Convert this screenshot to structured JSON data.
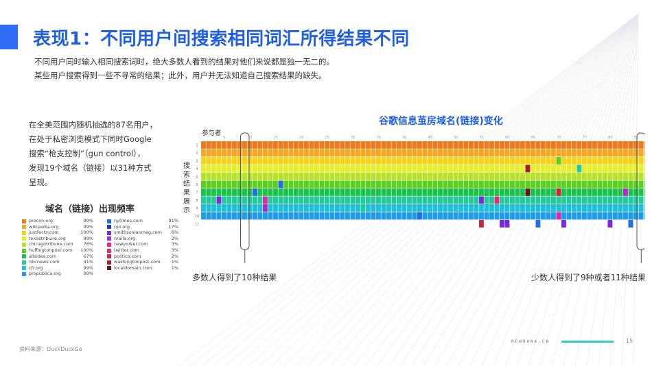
{
  "header": {
    "title": "表现1：不同用户间搜索相同词汇所得结果不同",
    "subtitle_lines": [
      "不同用户同时输入相同搜索词时，绝大多数人看到的结果对他们来说都是独一无二的。",
      "某些用户搜索得到一些不寻常的结果；此外，用户并无法知道自己搜索结果的缺失。"
    ]
  },
  "intro": {
    "lines": [
      "在全美范围内随机抽选的87名用户，",
      "在处于私密浏览模式下同时Google",
      "搜索“枪支控制”（gun control），",
      "发现19个域名（链接）以31种方式",
      "呈现。"
    ]
  },
  "legend": {
    "title": "域名（链接）出现频率",
    "columns": [
      [
        {
          "name": "procon.org",
          "pct": "99%",
          "color": "#f07a1a"
        },
        {
          "name": "wikipedia.org",
          "pct": "99%",
          "color": "#f5a623"
        },
        {
          "name": "justfects.com",
          "pct": "100%",
          "color": "#f5d31b"
        },
        {
          "name": "texastribune.org",
          "pct": "99%",
          "color": "#e6ef2a"
        },
        {
          "name": "chicagotribune.com",
          "pct": "76%",
          "color": "#b6e22a"
        },
        {
          "name": "huffingtonpost.com",
          "pct": "100%",
          "color": "#5fcf1f"
        },
        {
          "name": "allsides.com",
          "pct": "67%",
          "color": "#1cc34a"
        },
        {
          "name": "nbcnews.com",
          "pct": "41%",
          "color": "#21c99b"
        },
        {
          "name": "cfr.org",
          "pct": "99%",
          "color": "#21bfd8"
        },
        {
          "name": "propublica.org",
          "pct": "99%",
          "color": "#1f9be8"
        }
      ],
      [
        {
          "name": "nytimes.com",
          "pct": "91%",
          "color": "#1f6fe0"
        },
        {
          "name": "npr.org",
          "pct": "17%",
          "color": "#1b3fbe"
        },
        {
          "name": "smithsonianmag.com",
          "pct": "6%",
          "color": "#7b2ad8"
        },
        {
          "name": "nraila.org",
          "pct": "2%",
          "color": "#b02ad0"
        },
        {
          "name": "newyorker.com",
          "pct": "3%",
          "color": "#d62aa8"
        },
        {
          "name": "twitter.com",
          "pct": "3%",
          "color": "#e02a72"
        },
        {
          "name": "politico.com",
          "pct": "2%",
          "color": "#c8263c"
        },
        {
          "name": "washingtonpost.com",
          "pct": "1%",
          "color": "#a51f2a"
        },
        {
          "name": "localdomain.com",
          "pct": "1%",
          "color": "#6b1518"
        }
      ]
    ]
  },
  "chart": {
    "title": "谷歌信息茧房域名(链接)变化",
    "participants_label": "参与者",
    "y_label": "搜索结果展示",
    "x_ticks": [
      "5",
      "10",
      "15",
      "20",
      "25",
      "30",
      "35",
      "40",
      "45",
      "50",
      "55",
      "60",
      "65",
      "70",
      "75",
      "80",
      "85"
    ],
    "y_ticks": [
      "1",
      "2",
      "3",
      "4",
      "5",
      "6",
      "7",
      "8",
      "9",
      "10",
      "11"
    ],
    "callout_left": "多数人得到了10种结果",
    "callout_right": "少数人得到了9种或者11种结果"
  },
  "chart_data": {
    "type": "heatmap",
    "x": "participant 1-87",
    "y": "result position 1-11",
    "num_participants": 87,
    "num_positions": 11,
    "row_base_colors": [
      "#f07a1a",
      "#f5a623",
      "#f5d31b",
      "#e6ef2a",
      "#b6e22a",
      "#5fcf1f",
      "#1cc34a",
      "#21c99b",
      "#21bfd8",
      "#1f9be8",
      "#1f6fe0"
    ],
    "anomalies": [
      {
        "participant": 4,
        "position": 8,
        "color": "#7b2ad8"
      },
      {
        "participant": 11,
        "position": 7,
        "color": "#1f6fe0"
      },
      {
        "participant": 13,
        "position": 8,
        "color": "#d62aa8"
      },
      {
        "participant": 13,
        "position": 9,
        "color": "#b02ad0"
      },
      {
        "participant": 16,
        "position": 6,
        "color": "#1f6fe0"
      },
      {
        "participant": 22,
        "position": 6,
        "color": "#5fcf1f"
      },
      {
        "participant": 32,
        "position": 9,
        "color": "#21c99b"
      },
      {
        "participant": 43,
        "position": 10,
        "color": "#1f6fe0"
      },
      {
        "participant": 55,
        "position": 8,
        "color": "#7b2ad8"
      },
      {
        "participant": 55,
        "position": 11,
        "color": "#c8263c"
      },
      {
        "participant": 58,
        "position": 8,
        "color": "#e02a72"
      },
      {
        "participant": 59,
        "position": 11,
        "color": "#7b2ad8"
      },
      {
        "participant": 60,
        "position": 11,
        "color": "#7b2ad8"
      },
      {
        "participant": 64,
        "position": 4,
        "color": "#a51f2a"
      },
      {
        "participant": 64,
        "position": 7,
        "color": "#6b1518"
      },
      {
        "participant": 66,
        "position": 11,
        "color": "#1f6fe0"
      },
      {
        "participant": 70,
        "position": 3,
        "color": "#5fcf1f"
      },
      {
        "participant": 70,
        "position": 7,
        "color": "#c8263c"
      },
      {
        "participant": 70,
        "position": 10,
        "color": "#d62aa8"
      },
      {
        "participant": 71,
        "position": 11,
        "color": "#7b2ad8"
      },
      {
        "participant": 74,
        "position": 4,
        "color": "#21c99b"
      },
      {
        "participant": 80,
        "position": 11,
        "color": "#7b2ad8"
      },
      {
        "participant": 83,
        "position": 7,
        "color": "#b02ad0"
      },
      {
        "participant": 84,
        "position": 11,
        "color": "#1f6fe0"
      }
    ],
    "short_participants": [
      2,
      3,
      5,
      6,
      7,
      8,
      9,
      10,
      12,
      14,
      15,
      17,
      18,
      19,
      20,
      21,
      23,
      24,
      25,
      26,
      27,
      28,
      29,
      30,
      31,
      33,
      34,
      35,
      36,
      37,
      38,
      39,
      40,
      41,
      42,
      44,
      45,
      46,
      47,
      48,
      49,
      50,
      51,
      52,
      53,
      54,
      56,
      57,
      61,
      62,
      63,
      65,
      67,
      68,
      69,
      72,
      73,
      75,
      76,
      77,
      78,
      79,
      81,
      82,
      85,
      86,
      87
    ],
    "highlight_participants": [
      9,
      86
    ]
  },
  "footer": {
    "source": "资料来源：DuckDuckGo",
    "brand": "NEWRANK.CN",
    "page": "15"
  }
}
